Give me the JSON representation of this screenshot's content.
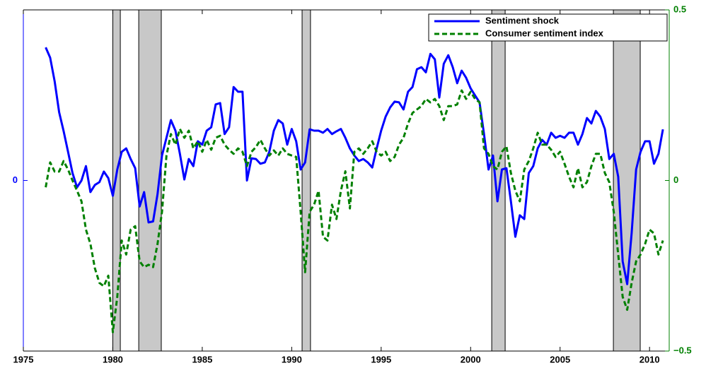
{
  "chart_data": {
    "type": "line",
    "x": [
      1976.25,
      1976.5,
      1976.75,
      1977,
      1977.25,
      1977.5,
      1977.75,
      1978,
      1978.25,
      1978.5,
      1978.75,
      1979,
      1979.25,
      1979.5,
      1979.75,
      1980,
      1980.25,
      1980.5,
      1980.75,
      1981,
      1981.25,
      1981.5,
      1981.75,
      1982,
      1982.25,
      1982.5,
      1982.75,
      1983,
      1983.25,
      1983.5,
      1983.75,
      1984,
      1984.25,
      1984.5,
      1984.75,
      1985,
      1985.25,
      1985.5,
      1985.75,
      1986,
      1986.25,
      1986.5,
      1986.75,
      1987,
      1987.25,
      1987.5,
      1987.75,
      1988,
      1988.25,
      1988.5,
      1988.75,
      1989,
      1989.25,
      1989.5,
      1989.75,
      1990,
      1990.25,
      1990.5,
      1990.75,
      1991,
      1991.25,
      1991.5,
      1991.75,
      1992,
      1992.25,
      1992.5,
      1992.75,
      1993,
      1993.25,
      1993.5,
      1993.75,
      1994,
      1994.25,
      1994.5,
      1994.75,
      1995,
      1995.25,
      1995.5,
      1995.75,
      1996,
      1996.25,
      1996.5,
      1996.75,
      1997,
      1997.25,
      1997.5,
      1997.75,
      1998,
      1998.25,
      1998.5,
      1998.75,
      1999,
      1999.25,
      1999.5,
      1999.75,
      2000,
      2000.25,
      2000.5,
      2000.75,
      2001,
      2001.25,
      2001.5,
      2001.75,
      2002,
      2002.25,
      2002.5,
      2002.75,
      2003,
      2003.25,
      2003.5,
      2003.75,
      2004,
      2004.25,
      2004.5,
      2004.75,
      2005,
      2005.25,
      2005.5,
      2005.75,
      2006,
      2006.25,
      2006.5,
      2006.75,
      2007,
      2007.25,
      2007.5,
      2007.75,
      2008,
      2008.25,
      2008.5,
      2008.75,
      2009,
      2009.25,
      2009.5,
      2009.75,
      2010,
      2010.25,
      2010.5,
      2010.75
    ],
    "series": [
      {
        "name": "Sentiment shock",
        "color": "#0000ff",
        "style": "solid",
        "axis": "y",
        "values": [
          0.39,
          0.36,
          0.29,
          0.2,
          0.145,
          0.084,
          0.022,
          -0.02,
          0,
          0.042,
          -0.034,
          -0.013,
          -0.005,
          0.026,
          0.007,
          -0.045,
          0.032,
          0.084,
          0.094,
          0.063,
          0.036,
          -0.076,
          -0.034,
          -0.123,
          -0.12,
          -0.04,
          0.073,
          0.125,
          0.177,
          0.146,
          0.078,
          0.003,
          0.063,
          0.042,
          0.115,
          0.105,
          0.146,
          0.156,
          0.223,
          0.227,
          0.136,
          0.156,
          0.274,
          0.26,
          0.26,
          0,
          0.065,
          0.063,
          0.049,
          0.053,
          0.084,
          0.146,
          0.177,
          0.167,
          0.105,
          0.151,
          0.115,
          0.032,
          0.053,
          0.15,
          0.146,
          0.146,
          0.14,
          0.151,
          0.136,
          0.144,
          0.151,
          0.125,
          0.094,
          0.073,
          0.057,
          0.063,
          0.053,
          0.038,
          0.094,
          0.146,
          0.187,
          0.214,
          0.231,
          0.229,
          0.208,
          0.26,
          0.274,
          0.326,
          0.332,
          0.317,
          0.371,
          0.355,
          0.243,
          0.342,
          0.367,
          0.332,
          0.285,
          0.322,
          0.301,
          0.27,
          0.249,
          0.229,
          0.136,
          0.032,
          0.073,
          -0.061,
          0.032,
          0.036,
          -0.061,
          -0.165,
          -0.102,
          -0.113,
          0.022,
          0.042,
          0.094,
          0.119,
          0.105,
          0.14,
          0.125,
          0.131,
          0.125,
          0.14,
          0.14,
          0.105,
          0.136,
          0.183,
          0.167,
          0.204,
          0.187,
          0.151,
          0.063,
          0.078,
          0.011,
          -0.237,
          -0.304,
          -0.154,
          0.032,
          0.084,
          0.115,
          0.115,
          0.049,
          0.078,
          0.15
        ]
      },
      {
        "name": "Consumer sentiment index",
        "color": "#008000",
        "style": "dashed",
        "axis": "y2",
        "values": [
          -0.02,
          0.053,
          0.026,
          0.026,
          0.057,
          0.032,
          0,
          -0.03,
          -0.061,
          -0.144,
          -0.186,
          -0.258,
          -0.3,
          -0.31,
          -0.279,
          -0.445,
          -0.341,
          -0.176,
          -0.217,
          -0.144,
          -0.134,
          -0.237,
          -0.254,
          -0.247,
          -0.254,
          -0.186,
          -0.092,
          0.073,
          0.136,
          0.105,
          0.151,
          0.125,
          0.146,
          0.094,
          0.115,
          0.084,
          0.119,
          0.09,
          0.125,
          0.131,
          0.105,
          0.09,
          0.078,
          0.094,
          0.084,
          0.042,
          0.084,
          0.098,
          0.119,
          0.094,
          0.073,
          0.088,
          0.073,
          0.094,
          0.078,
          0.073,
          0.069,
          -0.092,
          -0.269,
          -0.092,
          -0.071,
          -0.03,
          -0.165,
          -0.176,
          -0.071,
          -0.113,
          -0.03,
          0.027,
          -0.082,
          0.084,
          0.094,
          0.078,
          0.094,
          0.115,
          0.084,
          0.073,
          0.084,
          0.057,
          0.069,
          0.105,
          0.125,
          0.167,
          0.198,
          0.208,
          0.218,
          0.239,
          0.229,
          0.239,
          0.218,
          0.177,
          0.218,
          0.218,
          0.223,
          0.264,
          0.239,
          0.26,
          0.239,
          0.229,
          0.094,
          0.078,
          0.042,
          0.032,
          0.084,
          0.1,
          0.022,
          -0.03,
          -0.061,
          0.032,
          0.057,
          0.094,
          0.14,
          0.105,
          0.105,
          0.09,
          0.069,
          0.084,
          0.049,
          0.011,
          -0.02,
          0.036,
          -0.02,
          -0.005,
          0.042,
          0.078,
          0.078,
          0.022,
          -0.005,
          -0.092,
          -0.217,
          -0.341,
          -0.379,
          -0.3,
          -0.237,
          -0.217,
          -0.186,
          -0.144,
          -0.155,
          -0.217,
          -0.176
        ]
      }
    ],
    "shaded_periods": [
      [
        1980.0,
        1980.42
      ],
      [
        1981.45,
        1982.71
      ],
      [
        1990.58,
        1991.05
      ],
      [
        2001.18,
        2001.93
      ],
      [
        2007.98,
        2009.48
      ]
    ],
    "shade_color": "#c8c8c8",
    "xlim": [
      1975,
      2011.1
    ],
    "xticks": [
      1975,
      1980,
      1985,
      1990,
      1995,
      2000,
      2005,
      2010
    ],
    "ylim": [
      -0.5,
      0.5
    ],
    "yticks": [
      0
    ],
    "y2lim": [
      -0.5,
      0.5
    ],
    "y2ticks": [
      {
        "value": -0.5,
        "label": "−0.5"
      },
      0,
      0.5
    ],
    "legend": "upper right"
  }
}
